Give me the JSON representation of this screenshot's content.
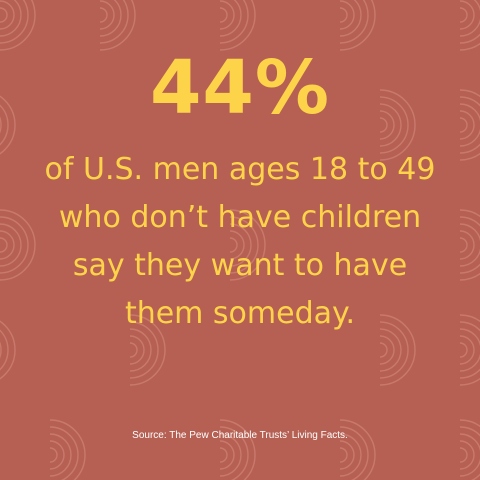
{
  "colors": {
    "background": "#b66053",
    "accent": "#fdd34a",
    "pattern": "#d98e80",
    "source_text": "#ffffff"
  },
  "decoration": {
    "pattern_icon": "concentric-arc-icon"
  },
  "headline": {
    "value": "44%"
  },
  "statement": {
    "lines": [
      "of U.S. men ages 18 to 49",
      "who don’t have children",
      "say they want to have",
      "them someday."
    ]
  },
  "source": {
    "text": "Source: The Pew Charitable Trusts’ Living Facts."
  }
}
